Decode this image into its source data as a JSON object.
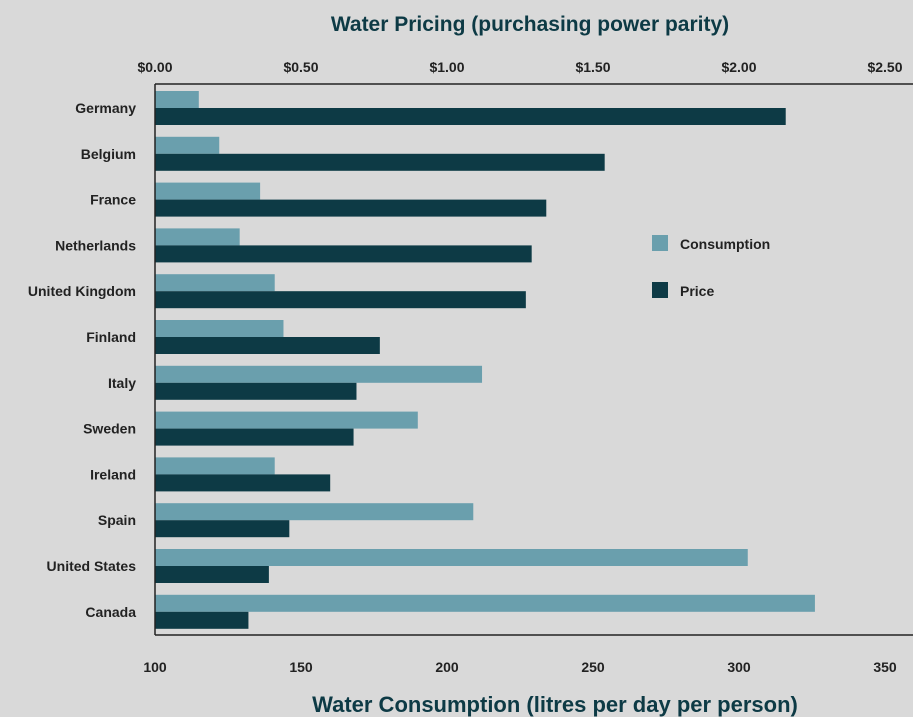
{
  "chart_data": {
    "type": "bar",
    "orientation": "horizontal",
    "title": "Water Pricing (purchasing power parity)",
    "xlabel": "Water Consumption (litres per day per person)",
    "categories": [
      "Germany",
      "Belgium",
      "France",
      "Netherlands",
      "United Kingdom",
      "Finland",
      "Italy",
      "Sweden",
      "Ireland",
      "Spain",
      "United States",
      "Canada"
    ],
    "consumption_axis": {
      "position": "bottom",
      "range": [
        100,
        350
      ],
      "ticks": [
        "100",
        "150",
        "200",
        "250",
        "300",
        "350"
      ]
    },
    "price_axis": {
      "position": "top",
      "range": [
        0,
        2.5
      ],
      "ticks": [
        "$0.00",
        "$0.50",
        "$1.00",
        "$1.50",
        "$2.00",
        "$2.50"
      ]
    },
    "series": [
      {
        "name": "Consumption",
        "axis": "consumption",
        "color": "#6a9fad",
        "values": [
          115,
          122,
          136,
          129,
          141,
          144,
          212,
          190,
          141,
          209,
          303,
          326
        ]
      },
      {
        "name": "Price",
        "axis": "price",
        "color": "#0d3a45",
        "values": [
          2.16,
          1.54,
          1.34,
          1.29,
          1.27,
          0.77,
          0.69,
          0.68,
          0.6,
          0.46,
          0.39,
          0.32
        ]
      }
    ],
    "legend": {
      "position": "right",
      "items": [
        "Consumption",
        "Price"
      ]
    },
    "grid": false
  }
}
